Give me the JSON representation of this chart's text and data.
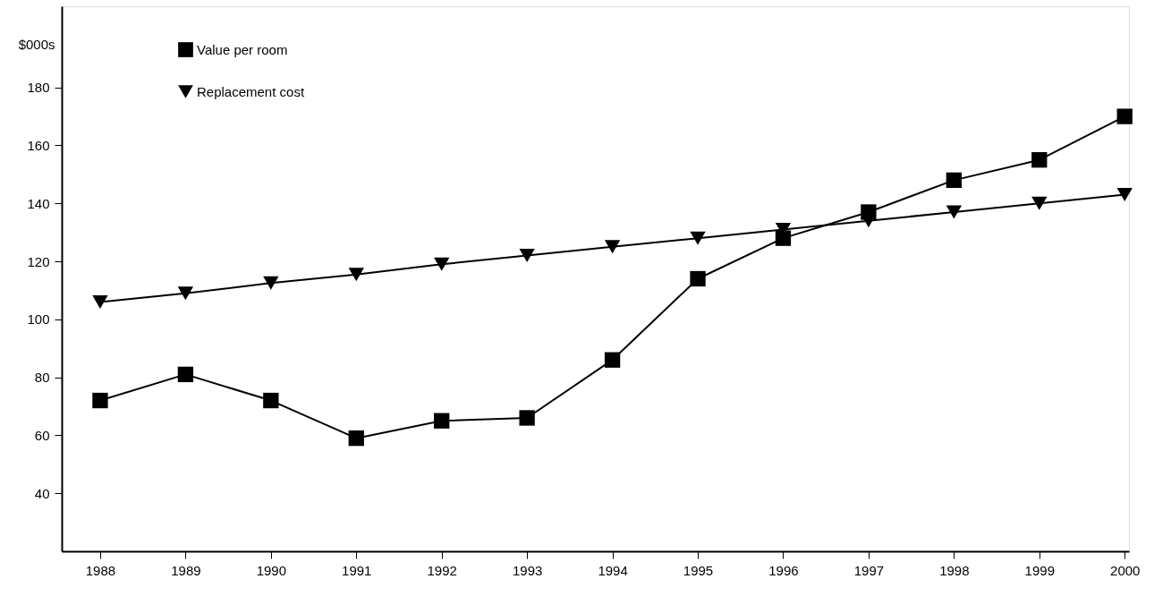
{
  "chart_data": {
    "type": "line",
    "ylabel": "$000s",
    "x": [
      1988,
      1989,
      1990,
      1991,
      1992,
      1993,
      1994,
      1995,
      1996,
      1997,
      1998,
      1999,
      2000
    ],
    "xlim": [
      1987.55,
      2000.05
    ],
    "xticks": [
      1988,
      1989,
      1990,
      1991,
      1992,
      1993,
      1994,
      1995,
      1996,
      1997,
      1998,
      1999,
      2000
    ],
    "ylim": [
      20,
      208
    ],
    "yticks": [
      40,
      60,
      80,
      100,
      120,
      140,
      160,
      180
    ],
    "grid": false,
    "legend": "top left",
    "line_style": "solid",
    "series": [
      {
        "name": "Value per room",
        "color": "#000000",
        "marker": "square",
        "values": [
          72,
          81,
          72,
          59,
          65,
          66,
          86,
          114,
          128,
          137,
          148,
          155,
          170
        ]
      },
      {
        "name": "Replacement cost",
        "color": "#000000",
        "marker": "triangle",
        "values": [
          106,
          109,
          112.5,
          115.5,
          119,
          122,
          125,
          128,
          131,
          134,
          137,
          140,
          143
        ]
      }
    ]
  }
}
